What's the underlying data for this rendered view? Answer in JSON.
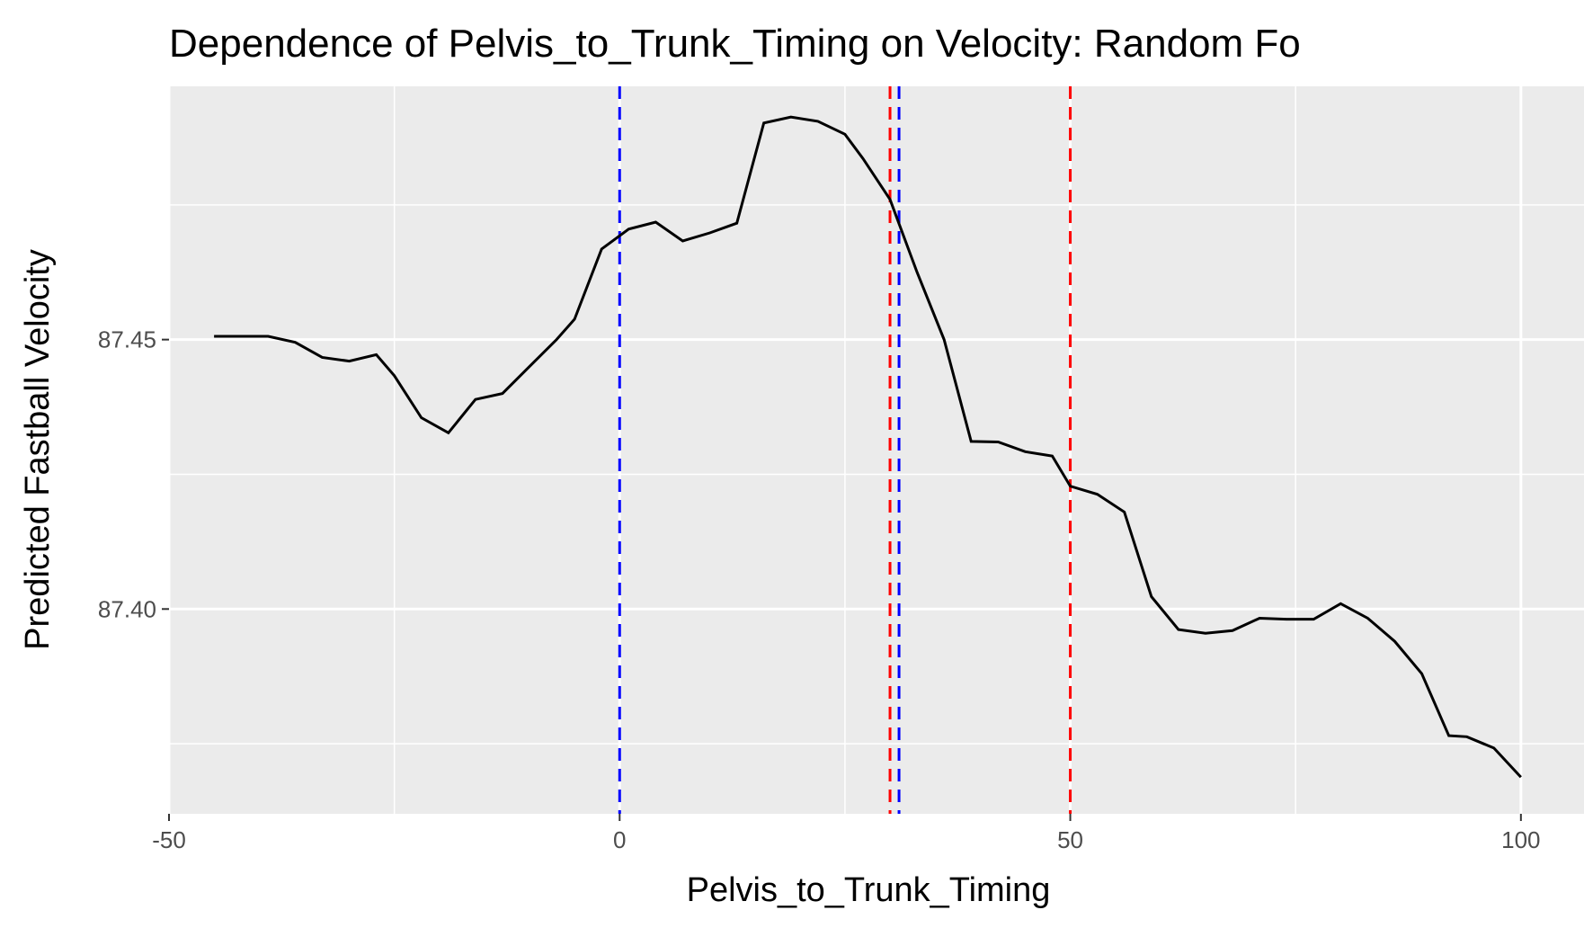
{
  "chart_data": {
    "type": "line",
    "title": "Dependence of Pelvis_to_Trunk_Timing on Velocity: Random Fo",
    "xlabel": "Pelvis_to_Trunk_Timing",
    "ylabel": "Predicted Fastball Velocity",
    "xlim": [
      -50,
      107
    ],
    "ylim": [
      87.362,
      87.497
    ],
    "x_ticks": [
      -50,
      0,
      50,
      100
    ],
    "x_tick_labels": [
      "-50",
      "0",
      "50",
      "100"
    ],
    "y_ticks": [
      87.4,
      87.45
    ],
    "y_tick_labels": [
      "87.40",
      "87.45"
    ],
    "grid": true,
    "series": [
      {
        "color": "#000000",
        "x": [
          -45,
          -42,
          -39,
          -36,
          -33,
          -30,
          -27,
          -25,
          -22,
          -19,
          -16,
          -13,
          -10,
          -7,
          -5,
          -2,
          1,
          4,
          7,
          10,
          13,
          16,
          19,
          22,
          25,
          27,
          30,
          33,
          36,
          39,
          42,
          45,
          48,
          50,
          53,
          56,
          59,
          62,
          65,
          68,
          71,
          74,
          77,
          80,
          83,
          86,
          89,
          92,
          94,
          97,
          100
        ],
        "y": [
          87.4506,
          87.4506,
          87.4506,
          87.4495,
          87.4467,
          87.446,
          87.4472,
          87.4433,
          87.4355,
          87.4327,
          87.4389,
          87.44,
          87.445,
          87.45,
          87.4538,
          87.4668,
          87.4705,
          87.4718,
          87.4683,
          87.4698,
          87.4716,
          87.4902,
          87.4913,
          87.4905,
          87.4881,
          87.4836,
          87.476,
          87.4625,
          87.45,
          87.4311,
          87.431,
          87.4292,
          87.4284,
          87.4228,
          87.4213,
          87.418,
          87.4023,
          87.3962,
          87.3955,
          87.396,
          87.3983,
          87.3981,
          87.3981,
          87.401,
          87.3983,
          87.394,
          87.388,
          87.3765,
          87.3763,
          87.3742,
          87.3688
        ]
      }
    ],
    "vlines": [
      {
        "x": 0,
        "color": "#0000ff",
        "style": "dashed"
      },
      {
        "x": 31,
        "color": "#0000ff",
        "style": "dashed"
      },
      {
        "x": 30,
        "color": "#ff0000",
        "style": "dashed"
      },
      {
        "x": 50,
        "color": "#ff0000",
        "style": "dashed"
      }
    ],
    "colors": {
      "panel_background": "#ebebeb",
      "grid_line": "#ffffff",
      "line": "#000000"
    }
  }
}
